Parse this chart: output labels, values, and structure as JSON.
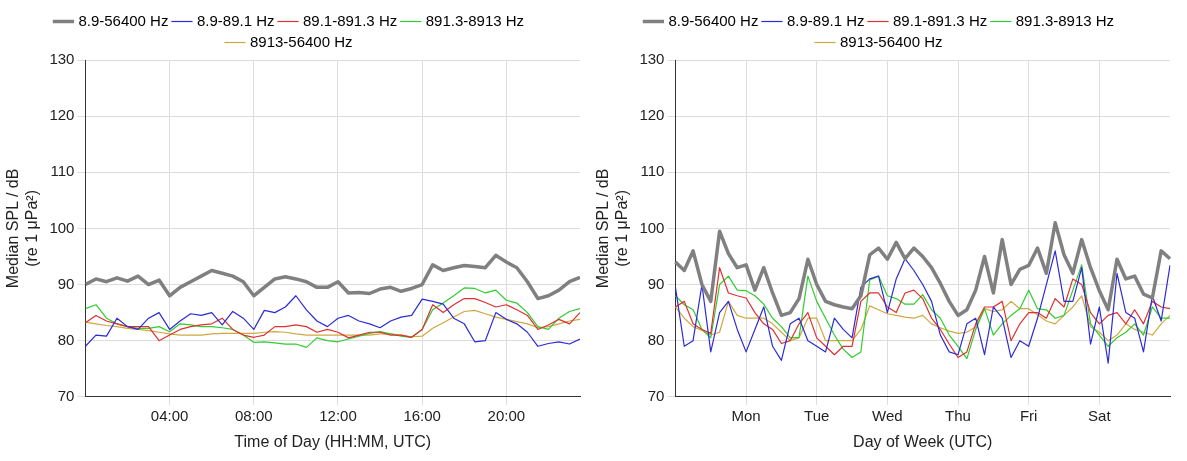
{
  "chart_data": [
    {
      "type": "line",
      "xlabel": "Time of Day (HH:MM, UTC)",
      "ylabel": "Median SPL / dB\n(re 1 μPa²)",
      "legend": "top",
      "grid": true,
      "marker": "none",
      "line_style": "solid",
      "xlim": [
        0,
        23.5
      ],
      "xticks": [
        {
          "value": 4,
          "label": "04:00"
        },
        {
          "value": 8,
          "label": "08:00"
        },
        {
          "value": 12,
          "label": "12:00"
        },
        {
          "value": 16,
          "label": "16:00"
        },
        {
          "value": 20,
          "label": "20:00"
        }
      ],
      "ylim": [
        70,
        130
      ],
      "yticks": [
        70,
        80,
        90,
        100,
        110,
        120,
        130
      ],
      "x": [
        0,
        0.5,
        1,
        1.5,
        2,
        2.5,
        3,
        3.5,
        4,
        4.5,
        5,
        5.5,
        6,
        6.5,
        7,
        7.5,
        8,
        8.5,
        9,
        9.5,
        10,
        10.5,
        11,
        11.5,
        12,
        12.5,
        13,
        13.5,
        14,
        14.5,
        15,
        15.5,
        16,
        16.5,
        17,
        17.5,
        18,
        18.5,
        19,
        19.5,
        20,
        20.5,
        21,
        21.5,
        22,
        22.5,
        23,
        23.5
      ],
      "series": [
        {
          "name": "8.9-56400 Hz",
          "color": "#808080",
          "values": [
            90.0,
            91,
            90.5,
            91.2,
            90.6,
            91.5,
            90,
            90.8,
            88,
            89.5,
            90.5,
            91.5,
            92.5,
            92,
            91.5,
            90.5,
            88,
            89.5,
            91,
            91.4,
            91,
            90.5,
            89.5,
            89.5,
            90.5,
            88.5,
            88.6,
            88.4,
            89.2,
            89.5,
            88.8,
            89.3,
            90,
            93.5,
            92.5,
            93,
            93.4,
            93.2,
            93.0,
            95.2,
            94,
            93,
            90.5,
            87.5,
            88.0,
            89,
            90.5,
            91.3
          ]
        },
        {
          "name": "8.9-89.1 Hz",
          "color": "#2b2bd9",
          "values": [
            79,
            81,
            80.8,
            84,
            82.5,
            82,
            84,
            85,
            82,
            83.5,
            84.8,
            84.5,
            85,
            82.8,
            85.2,
            84,
            82,
            85.4,
            85,
            86,
            88,
            85.5,
            83.5,
            82.5,
            84,
            84.5,
            83.5,
            83,
            82.3,
            83.5,
            84.2,
            84.5,
            87.4,
            87,
            86.5,
            84,
            83,
            79.8,
            80,
            85,
            83.8,
            83,
            81.5,
            79,
            79.5,
            79.8,
            79.4,
            80.3
          ]
        },
        {
          "name": "89.1-891.3 Hz",
          "color": "#e03030",
          "values": [
            83.2,
            84.5,
            83.5,
            83,
            82.5,
            82.5,
            82.5,
            80,
            81,
            82,
            82.5,
            82.8,
            83,
            84,
            82,
            81,
            80.6,
            81,
            82.5,
            82.5,
            82.8,
            82.5,
            81.5,
            82,
            81.5,
            80.5,
            81,
            81.5,
            81.5,
            81,
            81,
            80.6,
            82,
            86.4,
            85,
            86.4,
            87.5,
            87.5,
            86.8,
            86,
            86.4,
            85.5,
            84.5,
            82,
            82.8,
            83.8,
            83,
            85
          ]
        },
        {
          "name": "891.3-8913 Hz",
          "color": "#30cc30",
          "values": [
            85.7,
            86.4,
            84,
            83,
            82.5,
            82.2,
            82.2,
            82.5,
            81.6,
            83,
            82.8,
            82.5,
            82.5,
            82.3,
            82,
            81,
            79.7,
            79.8,
            79.6,
            79.4,
            79.4,
            78.8,
            80.5,
            80,
            79.8,
            80.3,
            80.8,
            81.3,
            81.6,
            81.2,
            80.8,
            80.6,
            82,
            85.5,
            86.7,
            88,
            89.4,
            89.3,
            88.5,
            89,
            87.2,
            86.7,
            85,
            82.5,
            82,
            84,
            85.2,
            85.7
          ]
        },
        {
          "name": "8913-56400 Hz",
          "color": "#d0a840",
          "values": [
            83.3,
            83,
            82.7,
            82.5,
            82.2,
            82,
            81.8,
            81.5,
            81.2,
            81,
            81,
            81,
            81.2,
            81.3,
            81.3,
            81.3,
            81.3,
            81.5,
            81.6,
            81.5,
            81.2,
            81,
            81,
            81,
            81,
            81,
            81,
            81,
            81.2,
            81.2,
            81,
            80.7,
            80.8,
            82.2,
            83.2,
            84.2,
            85.2,
            85.4,
            84.8,
            84.2,
            83.8,
            83.4,
            83,
            82.3,
            82.5,
            83,
            83.5,
            83.8
          ]
        }
      ]
    },
    {
      "type": "line",
      "xlabel": "Day of Week (UTC)",
      "ylabel": "Median SPL / dB\n(re 1 μPa²)",
      "legend": "top",
      "grid": true,
      "marker": "none",
      "line_style": "solid",
      "categories": [
        null,
        null,
        null,
        null,
        null,
        null,
        null,
        null,
        "Mon",
        null,
        null,
        null,
        null,
        null,
        null,
        null,
        "Tue",
        null,
        null,
        null,
        null,
        null,
        null,
        null,
        "Wed",
        null,
        null,
        null,
        null,
        null,
        null,
        null,
        "Thu",
        null,
        null,
        null,
        null,
        null,
        null,
        null,
        "Fri",
        null,
        null,
        null,
        null,
        null,
        null,
        null,
        "Sat",
        null,
        null,
        null,
        null,
        null,
        null,
        null,
        null
      ],
      "ylim": [
        70,
        130
      ],
      "yticks": [
        70,
        80,
        90,
        100,
        110,
        120,
        130
      ],
      "series": [
        {
          "name": "8.9-56400 Hz",
          "color": "#808080",
          "values": [
            94,
            92.5,
            96,
            90,
            87,
            99.5,
            95.5,
            93,
            93.5,
            89,
            93,
            88.5,
            84.5,
            85,
            87.5,
            94.5,
            90,
            87,
            86.4,
            86,
            85.7,
            88,
            95.3,
            96.5,
            94.5,
            97.5,
            94.6,
            96.5,
            95,
            93,
            90.2,
            87,
            84.5,
            85.5,
            89,
            95,
            88.5,
            98,
            90,
            92.7,
            93.4,
            96.5,
            92,
            101,
            95.3,
            92,
            98,
            93,
            88.9,
            85.5,
            94.5,
            91,
            91.5,
            88.3,
            87.6,
            96,
            94.6
          ]
        },
        {
          "name": "8.9-89.1 Hz",
          "color": "#2b2bd9",
          "values": [
            89.5,
            79,
            80,
            90,
            78,
            85,
            87,
            82,
            78,
            82,
            86,
            79,
            76.5,
            83,
            84,
            80,
            79,
            78,
            84,
            82,
            80.5,
            89.5,
            91,
            91.5,
            85,
            91,
            94.6,
            92.5,
            90,
            87,
            81,
            78,
            77.5,
            83,
            84,
            77.5,
            86,
            84,
            77,
            80,
            79,
            84,
            90,
            96,
            87,
            87,
            93,
            79.4,
            86,
            76,
            92,
            85,
            84,
            78,
            88,
            83.5,
            93.4
          ]
        },
        {
          "name": "89.1-891.3 Hz",
          "color": "#e03030",
          "values": [
            86,
            87,
            83,
            82,
            81.3,
            93,
            88.5,
            88,
            87.6,
            85,
            83,
            82,
            79.5,
            80,
            83,
            85,
            80.5,
            79,
            77.5,
            79,
            79,
            87,
            88.5,
            88.5,
            86,
            85,
            88.5,
            89,
            87.5,
            84,
            82,
            79.4,
            77,
            78,
            83,
            86,
            86,
            87,
            80,
            83,
            85,
            85,
            84,
            87.5,
            86,
            91,
            90,
            85,
            83,
            84.5,
            85,
            83,
            85.5,
            83,
            87,
            86,
            85.7
          ]
        },
        {
          "name": "891.3-8913 Hz",
          "color": "#30cc30",
          "values": [
            88,
            86.4,
            85.5,
            82,
            80.5,
            90,
            91.5,
            89,
            88.9,
            88,
            86.5,
            84,
            82.5,
            80.5,
            80.6,
            91.5,
            87,
            84,
            81,
            78.5,
            77,
            78,
            90.8,
            91.5,
            88,
            87.5,
            86.5,
            86.5,
            88.2,
            85.5,
            84,
            81,
            79,
            76.8,
            82,
            85.7,
            81,
            83,
            84.5,
            85.7,
            89,
            85.7,
            85.5,
            84,
            84.5,
            89,
            93.5,
            83,
            81,
            79,
            80.5,
            81.5,
            83,
            81,
            86,
            84,
            84
          ]
        },
        {
          "name": "8913-56400 Hz",
          "color": "#d0a840",
          "values": [
            86,
            84,
            82.5,
            81.8,
            81,
            81.5,
            87,
            84.5,
            84,
            84,
            84,
            83,
            81.5,
            80,
            80.5,
            84,
            84,
            80,
            80,
            80,
            80,
            82,
            86.2,
            85.5,
            84.8,
            84.5,
            84.2,
            84,
            84.5,
            83,
            82.3,
            81.7,
            81.3,
            81.5,
            82.5,
            85.7,
            85.2,
            85.5,
            87,
            85.7,
            85.7,
            84.6,
            83.5,
            83,
            84.5,
            86,
            88,
            82.5,
            81.5,
            80,
            81,
            83,
            82,
            81.5,
            81,
            83,
            84.5
          ]
        }
      ]
    }
  ]
}
